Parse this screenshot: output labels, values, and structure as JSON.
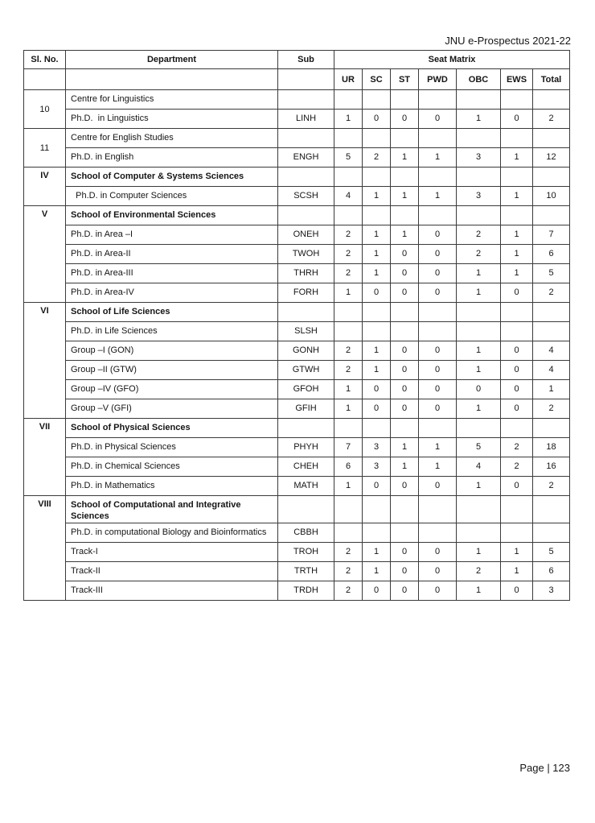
{
  "page": {
    "header_right": "JNU e-Prospectus 2021-22",
    "footer_right": "Page | 123"
  },
  "table": {
    "columns": {
      "sl_no": "Sl. No.",
      "department": "Department",
      "sub": "Sub",
      "seat_matrix": "Seat Matrix"
    },
    "seat_columns": [
      "UR",
      "SC",
      "ST",
      "PWD",
      "OBC",
      "EWS",
      "Total"
    ],
    "groups": [
      {
        "sl_no": "10",
        "rows": [
          {
            "department": "Centre for Linguistics",
            "sub": "",
            "seats": [
              "",
              "",
              "",
              "",
              "",
              "",
              ""
            ]
          },
          {
            "department": "Ph.D.  in Linguistics",
            "sub": "LINH",
            "seats": [
              "1",
              "0",
              "0",
              "0",
              "1",
              "0",
              "2"
            ]
          }
        ]
      },
      {
        "sl_no": "11",
        "rows": [
          {
            "department": "Centre for English Studies",
            "sub": "",
            "seats": [
              "",
              "",
              "",
              "",
              "",
              "",
              ""
            ]
          },
          {
            "department": "Ph.D. in English",
            "sub": "ENGH",
            "seats": [
              "5",
              "2",
              "1",
              "1",
              "3",
              "1",
              "12"
            ]
          }
        ]
      },
      {
        "sl_no": "IV",
        "rows": [
          {
            "department": "School of Computer & Systems Sciences",
            "heading": true,
            "sub": "",
            "seats": [
              "",
              "",
              "",
              "",
              "",
              "",
              ""
            ]
          },
          {
            "department": "  Ph.D. in Computer Sciences",
            "sub": "SCSH",
            "seats": [
              "4",
              "1",
              "1",
              "1",
              "3",
              "1",
              "10"
            ]
          }
        ]
      },
      {
        "sl_no": "V",
        "rows": [
          {
            "department": "School of Environmental Sciences",
            "heading": true,
            "sub": "",
            "seats": [
              "",
              "",
              "",
              "",
              "",
              "",
              ""
            ]
          },
          {
            "department": "Ph.D. in Area –I",
            "sub": "ONEH",
            "seats": [
              "2",
              "1",
              "1",
              "0",
              "2",
              "1",
              "7"
            ]
          },
          {
            "department": "Ph.D. in Area-II",
            "sub": "TWOH",
            "seats": [
              "2",
              "1",
              "0",
              "0",
              "2",
              "1",
              "6"
            ]
          },
          {
            "department": "Ph.D. in Area-III",
            "sub": "THRH",
            "seats": [
              "2",
              "1",
              "0",
              "0",
              "1",
              "1",
              "5"
            ]
          },
          {
            "department": "Ph.D. in Area-IV",
            "sub": "FORH",
            "seats": [
              "1",
              "0",
              "0",
              "0",
              "1",
              "0",
              "2"
            ]
          }
        ]
      },
      {
        "sl_no": "VI",
        "rows": [
          {
            "department": "School of Life Sciences",
            "heading": true,
            "sub": "",
            "seats": [
              "",
              "",
              "",
              "",
              "",
              "",
              ""
            ]
          },
          {
            "department": "Ph.D. in Life Sciences",
            "sub": "SLSH",
            "seats": [
              "",
              "",
              "",
              "",
              "",
              "",
              ""
            ]
          },
          {
            "department": "Group –I (GON)",
            "sub": "GONH",
            "seats": [
              "2",
              "1",
              "0",
              "0",
              "1",
              "0",
              "4"
            ]
          },
          {
            "department": "Group –II (GTW)",
            "sub": "GTWH",
            "seats": [
              "2",
              "1",
              "0",
              "0",
              "1",
              "0",
              "4"
            ]
          },
          {
            "department": "Group –IV (GFO)",
            "sub": "GFOH",
            "seats": [
              "1",
              "0",
              "0",
              "0",
              "0",
              "0",
              "1"
            ]
          },
          {
            "department": "Group –V (GFI)",
            "sub": "GFIH",
            "seats": [
              "1",
              "0",
              "0",
              "0",
              "1",
              "0",
              "2"
            ]
          }
        ]
      },
      {
        "sl_no": "VII",
        "rows": [
          {
            "department": "School of Physical Sciences",
            "heading": true,
            "sub": "",
            "seats": [
              "",
              "",
              "",
              "",
              "",
              "",
              ""
            ]
          },
          {
            "department": "Ph.D. in Physical Sciences",
            "sub": "PHYH",
            "seats": [
              "7",
              "3",
              "1",
              "1",
              "5",
              "2",
              "18"
            ]
          },
          {
            "department": "Ph.D. in Chemical Sciences",
            "sub": "CHEH",
            "seats": [
              "6",
              "3",
              "1",
              "1",
              "4",
              "2",
              "16"
            ]
          },
          {
            "department": "Ph.D. in Mathematics",
            "sub": "MATH",
            "seats": [
              "1",
              "0",
              "0",
              "0",
              "1",
              "0",
              "2"
            ]
          }
        ]
      },
      {
        "sl_no": "VIII",
        "rows": [
          {
            "department": "School of Computational and Integrative Sciences",
            "heading": true,
            "sub": "",
            "seats": [
              "",
              "",
              "",
              "",
              "",
              "",
              ""
            ]
          },
          {
            "department": "Ph.D. in computational Biology and Bioinformatics",
            "sub": "CBBH",
            "seats": [
              "",
              "",
              "",
              "",
              "",
              "",
              ""
            ]
          },
          {
            "department": "Track-I",
            "sub": "TROH",
            "seats": [
              "2",
              "1",
              "0",
              "0",
              "1",
              "1",
              "5"
            ]
          },
          {
            "department": "Track-II",
            "sub": "TRTH",
            "seats": [
              "2",
              "1",
              "0",
              "0",
              "2",
              "1",
              "6"
            ]
          },
          {
            "department": "Track-III",
            "sub": "TRDH",
            "seats": [
              "2",
              "0",
              "0",
              "0",
              "1",
              "0",
              "3"
            ]
          }
        ]
      }
    ]
  }
}
